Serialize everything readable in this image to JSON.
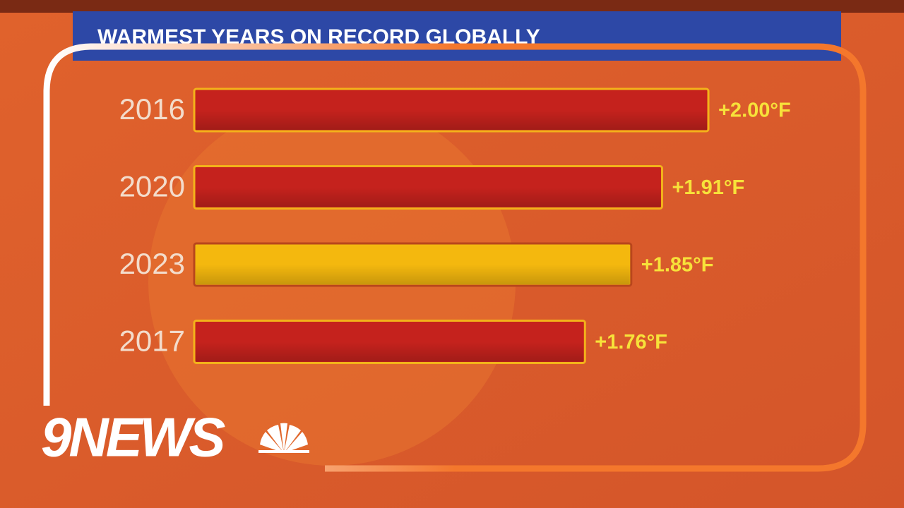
{
  "chart_data": {
    "type": "bar",
    "orientation": "horizontal",
    "title": "WARMEST YEARS ON RECORD GLOBALLY",
    "categories": [
      "2016",
      "2020",
      "2023",
      "2017"
    ],
    "values": [
      2.0,
      1.91,
      1.85,
      1.76
    ],
    "value_labels": [
      "+2.00°F",
      "+1.91°F",
      "+1.85°F",
      "+1.76°F"
    ],
    "colors": [
      "#c5221d",
      "#c5221d",
      "#f4b80e",
      "#c5221d"
    ],
    "xlim": [
      1.0,
      2.0
    ]
  },
  "logo": "9NEWS"
}
